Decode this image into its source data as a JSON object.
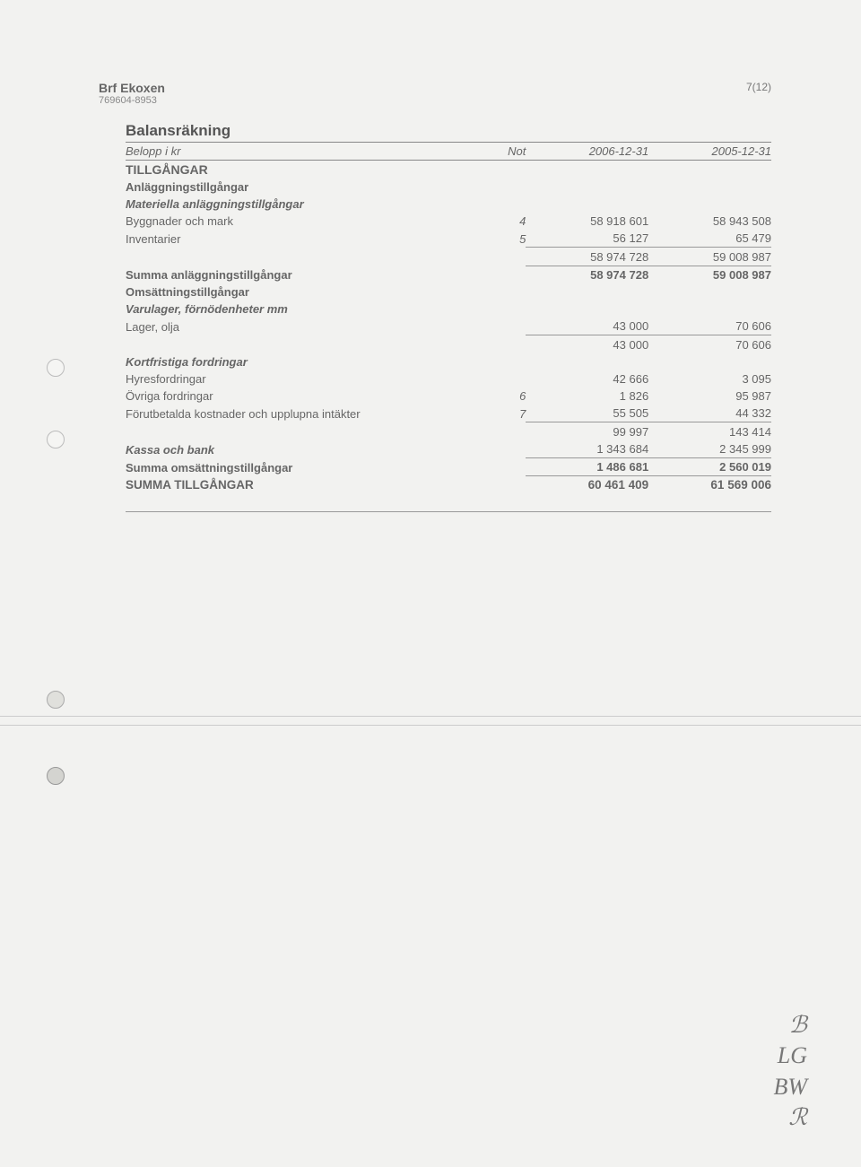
{
  "header": {
    "org_name": "Brf Ekoxen",
    "org_id": "769604-8953",
    "page_num": "7(12)"
  },
  "title": "Balansräkning",
  "columns": {
    "label": "Belopp i kr",
    "not": "Not",
    "y1": "2006-12-31",
    "y2": "2005-12-31"
  },
  "s_tillgangar": "TILLGÅNGAR",
  "s_anlagg": "Anläggningstillgångar",
  "s_mat": "Materiella anläggningstillgångar",
  "r_bygg": {
    "label": "Byggnader och mark",
    "not": "4",
    "v1": "58 918 601",
    "v2": "58 943 508"
  },
  "r_inv": {
    "label": "Inventarier",
    "not": "5",
    "v1": "56 127",
    "v2": "65 479"
  },
  "st_mat": {
    "v1": "58 974 728",
    "v2": "59 008 987"
  },
  "sum_anl": {
    "label": "Summa anläggningstillgångar",
    "v1": "58 974 728",
    "v2": "59 008 987"
  },
  "s_oms": "Omsättningstillgångar",
  "s_varu": "Varulager, förnödenheter mm",
  "r_lager": {
    "label": "Lager, olja",
    "v1": "43 000",
    "v2": "70 606"
  },
  "st_varu": {
    "v1": "43 000",
    "v2": "70 606"
  },
  "s_kort": "Kortfristiga fordringar",
  "r_hyres": {
    "label": "Hyresfordringar",
    "v1": "42 666",
    "v2": "3 095"
  },
  "r_ovr": {
    "label": "Övriga fordringar",
    "not": "6",
    "v1": "1 826",
    "v2": "95 987"
  },
  "r_forut": {
    "label": "Förutbetalda kostnader och upplupna intäkter",
    "not": "7",
    "v1": "55 505",
    "v2": "44 332"
  },
  "st_kort": {
    "v1": "99 997",
    "v2": "143 414"
  },
  "r_kassa": {
    "label": "Kassa och bank",
    "v1": "1 343 684",
    "v2": "2 345 999"
  },
  "sum_oms": {
    "label": "Summa omsättningstillgångar",
    "v1": "1 486 681",
    "v2": "2 560 019"
  },
  "grand": {
    "label": "SUMMA TILLGÅNGAR",
    "v1": "60 461 409",
    "v2": "61 569 006"
  },
  "sigs": [
    "ℬ",
    "LG",
    "BW",
    "ℛ"
  ]
}
